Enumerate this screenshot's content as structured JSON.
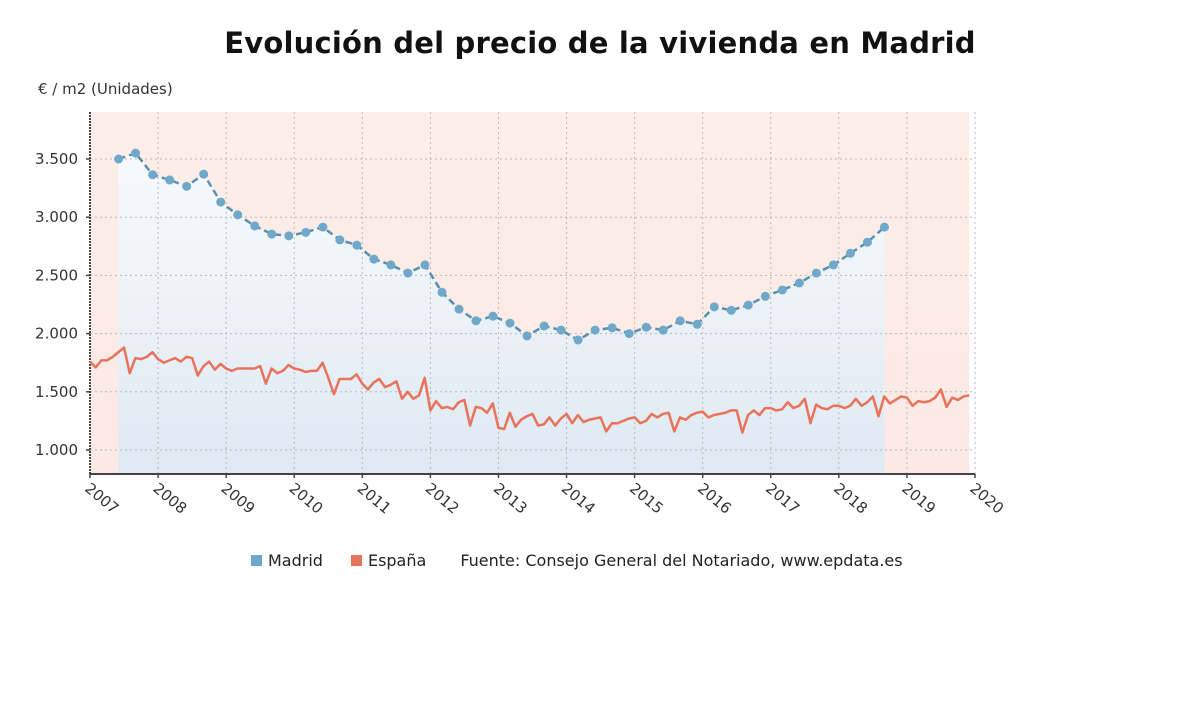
{
  "chart_data": {
    "type": "line",
    "title": "Evolución del precio de la vivienda en Madrid",
    "ylabel": "€ / m2 (Unidades)",
    "xlabel": "",
    "xlim": [
      2007,
      2020
    ],
    "ylim": [
      790,
      3900
    ],
    "x_ticks": [
      "2007",
      "2008",
      "2009",
      "2010",
      "2011",
      "2012",
      "2013",
      "2014",
      "2015",
      "2016",
      "2017",
      "2018",
      "2019",
      "2020"
    ],
    "y_ticks": [
      {
        "value": 1000,
        "label": "1.000"
      },
      {
        "value": 1500,
        "label": "1.500"
      },
      {
        "value": 2000,
        "label": "2.000"
      },
      {
        "value": 2500,
        "label": "2.500"
      },
      {
        "value": 3000,
        "label": "3.000"
      },
      {
        "value": 3500,
        "label": "3.500"
      }
    ],
    "grid": true,
    "legend_position": "bottom",
    "series": [
      {
        "name": "Madrid",
        "color": "#6fa8c9",
        "style": "dashed-markers",
        "start": 2007.42,
        "step": 0.25,
        "values": [
          3500,
          3550,
          3365,
          3320,
          3265,
          3370,
          3130,
          3020,
          2925,
          2855,
          2840,
          2870,
          2915,
          2805,
          2760,
          2640,
          2590,
          2520,
          2590,
          2355,
          2210,
          2110,
          2150,
          2090,
          1980,
          2065,
          2030,
          1945,
          2030,
          2050,
          2000,
          2055,
          2030,
          2110,
          2080,
          2230,
          2200,
          2245,
          2320,
          2375,
          2435,
          2520,
          2590,
          2690,
          2785,
          2915
        ]
      },
      {
        "name": "España",
        "color": "#e8735a",
        "style": "solid",
        "start": 2007.0,
        "step": 0.08333,
        "values": [
          1760,
          1710,
          1770,
          1770,
          1800,
          1840,
          1880,
          1660,
          1790,
          1780,
          1800,
          1840,
          1780,
          1750,
          1770,
          1790,
          1760,
          1800,
          1790,
          1640,
          1720,
          1760,
          1690,
          1740,
          1700,
          1680,
          1700,
          1700,
          1700,
          1700,
          1720,
          1570,
          1700,
          1660,
          1680,
          1730,
          1700,
          1690,
          1670,
          1680,
          1680,
          1750,
          1620,
          1480,
          1610,
          1610,
          1610,
          1650,
          1570,
          1520,
          1580,
          1610,
          1540,
          1560,
          1590,
          1440,
          1500,
          1440,
          1470,
          1620,
          1340,
          1420,
          1360,
          1370,
          1350,
          1410,
          1430,
          1210,
          1370,
          1360,
          1320,
          1400,
          1190,
          1180,
          1320,
          1200,
          1260,
          1290,
          1310,
          1210,
          1220,
          1280,
          1210,
          1270,
          1310,
          1230,
          1300,
          1240,
          1260,
          1270,
          1280,
          1160,
          1230,
          1230,
          1250,
          1270,
          1280,
          1230,
          1250,
          1310,
          1280,
          1310,
          1320,
          1160,
          1280,
          1260,
          1300,
          1320,
          1330,
          1280,
          1300,
          1310,
          1320,
          1340,
          1340,
          1150,
          1300,
          1340,
          1300,
          1360,
          1360,
          1340,
          1350,
          1410,
          1360,
          1380,
          1440,
          1230,
          1390,
          1360,
          1350,
          1380,
          1380,
          1360,
          1380,
          1440,
          1380,
          1410,
          1460,
          1290,
          1460,
          1400,
          1430,
          1460,
          1450,
          1380,
          1420,
          1410,
          1420,
          1450,
          1520,
          1370,
          1450,
          1430,
          1460,
          1470
        ]
      }
    ]
  },
  "legend": {
    "items": [
      {
        "label": "Madrid",
        "color": "#6fa8c9"
      },
      {
        "label": "España",
        "color": "#e8735a"
      }
    ],
    "source": "Fuente: Consejo General del Notariado, www.epdata.es"
  }
}
